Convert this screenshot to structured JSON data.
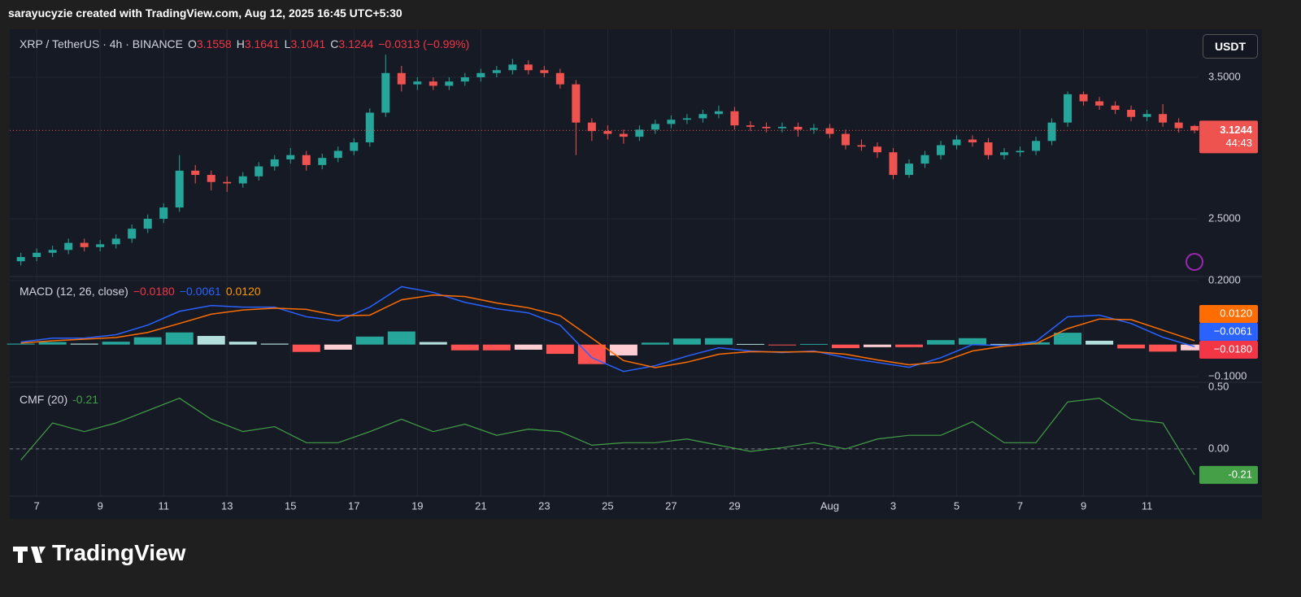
{
  "page": {
    "attribution": "sarayucyzie created with TradingView.com, Aug 12, 2025 16:45 UTC+5:30",
    "logo": "TradingView",
    "currency": "USDT"
  },
  "chart_data": [
    {
      "type": "candlestick",
      "symbol": "XRP / TetherUS · 4h · BINANCE",
      "ohlc_prefixes": [
        "O",
        "H",
        "L",
        "C"
      ],
      "change": "−0.0313 (−0.99%)",
      "countdown": "44:43",
      "up_color": "#26a69a",
      "down_color": "#ef5350",
      "grid": true,
      "ylim": [
        2.092,
        3.839
      ],
      "yticks": [
        {
          "value": 3.5,
          "label": "3.5000"
        },
        {
          "value": 2.5,
          "label": "2.5000"
        }
      ],
      "x": [
        6.5,
        7,
        7.5,
        8,
        8.5,
        9,
        9.5,
        10,
        10.5,
        11,
        11.5,
        12,
        12.5,
        13,
        13.5,
        14,
        14.5,
        15,
        15.5,
        16,
        16.5,
        17,
        17.5,
        18,
        18.5,
        19,
        19.5,
        20,
        20.5,
        21,
        21.5,
        22,
        22.5,
        23,
        23.5,
        24,
        24.5,
        25,
        25.5,
        26,
        26.5,
        27,
        27.5,
        28,
        28.5,
        29,
        29.5,
        30,
        30.5,
        31,
        31.5,
        32,
        32.5,
        33,
        33.5,
        34,
        34.5,
        35,
        35.5,
        36,
        36.5,
        37,
        37.5,
        38,
        38.5,
        39,
        39.5,
        40,
        40.5,
        41,
        41.5,
        42,
        42.5,
        43,
        43.5
      ],
      "open": [
        2.2,
        2.23,
        2.26,
        2.28,
        2.33,
        2.3,
        2.32,
        2.36,
        2.43,
        2.5,
        2.58,
        2.84,
        2.81,
        2.76,
        2.75,
        2.8,
        2.87,
        2.92,
        2.95,
        2.88,
        2.93,
        2.98,
        3.04,
        3.25,
        3.53,
        3.45,
        3.47,
        3.44,
        3.47,
        3.5,
        3.53,
        3.55,
        3.59,
        3.55,
        3.53,
        3.45,
        3.18,
        3.12,
        3.1,
        3.08,
        3.13,
        3.17,
        3.2,
        3.21,
        3.24,
        3.26,
        3.16,
        3.15,
        3.14,
        3.15,
        3.13,
        3.14,
        3.1,
        3.02,
        3.01,
        2.97,
        2.81,
        2.89,
        2.95,
        3.02,
        3.06,
        3.04,
        2.95,
        2.97,
        2.98,
        3.05,
        3.18,
        3.38,
        3.33,
        3.3,
        3.27,
        3.22,
        3.24,
        3.18,
        3.1558
      ],
      "high": [
        2.26,
        2.29,
        2.31,
        2.36,
        2.36,
        2.35,
        2.39,
        2.46,
        2.53,
        2.61,
        2.95,
        2.88,
        2.84,
        2.8,
        2.83,
        2.9,
        2.95,
        3.0,
        2.98,
        2.96,
        3.01,
        3.07,
        3.28,
        3.66,
        3.58,
        3.5,
        3.5,
        3.5,
        3.53,
        3.56,
        3.58,
        3.63,
        3.62,
        3.58,
        3.56,
        3.48,
        3.21,
        3.16,
        3.13,
        3.16,
        3.2,
        3.23,
        3.24,
        3.27,
        3.3,
        3.29,
        3.19,
        3.18,
        3.18,
        3.18,
        3.17,
        3.17,
        3.13,
        3.06,
        3.04,
        3.0,
        2.92,
        2.98,
        3.05,
        3.09,
        3.09,
        3.07,
        3.0,
        3.01,
        3.08,
        3.21,
        3.4,
        3.4,
        3.36,
        3.33,
        3.3,
        3.27,
        3.31,
        3.21,
        3.1641
      ],
      "low": [
        2.17,
        2.2,
        2.23,
        2.25,
        2.27,
        2.27,
        2.29,
        2.33,
        2.4,
        2.47,
        2.55,
        2.75,
        2.7,
        2.69,
        2.72,
        2.77,
        2.84,
        2.89,
        2.84,
        2.85,
        2.9,
        2.95,
        3.01,
        3.22,
        3.4,
        3.41,
        3.41,
        3.41,
        3.44,
        3.47,
        3.5,
        3.52,
        3.52,
        3.5,
        3.42,
        2.95,
        3.05,
        3.06,
        3.03,
        3.05,
        3.1,
        3.14,
        3.17,
        3.18,
        3.21,
        3.13,
        3.12,
        3.11,
        3.11,
        3.08,
        3.1,
        3.07,
        2.99,
        2.98,
        2.93,
        2.78,
        2.79,
        2.86,
        2.92,
        2.99,
        3.01,
        2.92,
        2.92,
        2.94,
        2.95,
        3.02,
        3.15,
        3.3,
        3.27,
        3.24,
        3.19,
        3.19,
        3.15,
        3.11,
        3.1041
      ],
      "close": [
        2.23,
        2.26,
        2.28,
        2.33,
        2.3,
        2.32,
        2.36,
        2.43,
        2.5,
        2.58,
        2.84,
        2.81,
        2.76,
        2.75,
        2.8,
        2.87,
        2.92,
        2.95,
        2.88,
        2.93,
        2.98,
        3.04,
        3.25,
        3.53,
        3.45,
        3.47,
        3.44,
        3.47,
        3.5,
        3.53,
        3.55,
        3.59,
        3.55,
        3.53,
        3.45,
        3.18,
        3.12,
        3.1,
        3.08,
        3.13,
        3.17,
        3.2,
        3.21,
        3.24,
        3.26,
        3.16,
        3.15,
        3.14,
        3.15,
        3.13,
        3.14,
        3.1,
        3.02,
        3.01,
        2.97,
        2.81,
        2.89,
        2.95,
        3.02,
        3.06,
        3.04,
        2.95,
        2.97,
        2.98,
        3.05,
        3.18,
        3.38,
        3.33,
        3.3,
        3.27,
        3.22,
        3.24,
        3.18,
        3.14,
        3.1244
      ]
    },
    {
      "type": "macd",
      "title": "MACD (12, 26, close)",
      "grid": true,
      "ylim": [
        -0.1178,
        0.2127
      ],
      "yticks": [
        {
          "value": 0.2,
          "label": "0.2000"
        },
        {
          "value": -0.1,
          "label": "−0.1000"
        }
      ],
      "histogram_colors": [
        "#26a69a",
        "#b2dfdb",
        "#ff5252",
        "#ffcdd2"
      ],
      "x": [
        6.5,
        7.5,
        8.5,
        9.5,
        10.5,
        11.5,
        12.5,
        13.5,
        14.5,
        15.5,
        16.5,
        17.5,
        18.5,
        19.5,
        20.5,
        21.5,
        22.5,
        23.5,
        24.5,
        25.5,
        26.5,
        27.5,
        28.5,
        29.5,
        30.5,
        31.5,
        32.5,
        33.5,
        34.5,
        35.5,
        36.5,
        37.5,
        38.5,
        39.5,
        40.5,
        41.5,
        42.5,
        43.5
      ],
      "series": [
        {
          "kind": "histogram",
          "color": "#f23645",
          "last_label": "−0.0180",
          "values": [
            0.003,
            0.008,
            0.003,
            0.009,
            0.023,
            0.038,
            0.027,
            0.009,
            0.003,
            -0.023,
            -0.016,
            0.025,
            0.041,
            0.008,
            -0.018,
            -0.018,
            -0.016,
            -0.029,
            -0.061,
            -0.034,
            0.006,
            0.019,
            0.02,
            0.002,
            -0.002,
            0.002,
            -0.011,
            -0.008,
            -0.008,
            0.014,
            0.02,
            0.002,
            0.007,
            0.037,
            0.012,
            -0.012,
            -0.022,
            -0.018
          ]
        },
        {
          "kind": "line",
          "color": "#2962ff",
          "last_label": "−0.0061",
          "values": [
            0.008,
            0.02,
            0.02,
            0.031,
            0.061,
            0.104,
            0.122,
            0.117,
            0.117,
            0.087,
            0.074,
            0.117,
            0.181,
            0.163,
            0.132,
            0.112,
            0.099,
            0.061,
            -0.041,
            -0.084,
            -0.066,
            -0.036,
            -0.01,
            -0.02,
            -0.025,
            -0.02,
            -0.041,
            -0.056,
            -0.071,
            -0.041,
            0.0,
            -0.003,
            0.01,
            0.087,
            0.092,
            0.066,
            0.023,
            -0.0061
          ]
        },
        {
          "kind": "line",
          "color": "#ff6d00",
          "last_label": "0.0120",
          "values": [
            0.005,
            0.012,
            0.017,
            0.022,
            0.038,
            0.066,
            0.095,
            0.108,
            0.114,
            0.11,
            0.09,
            0.092,
            0.14,
            0.155,
            0.15,
            0.13,
            0.115,
            0.09,
            0.02,
            -0.05,
            -0.072,
            -0.055,
            -0.03,
            -0.022,
            -0.023,
            -0.022,
            -0.03,
            -0.048,
            -0.063,
            -0.055,
            -0.02,
            -0.005,
            0.003,
            0.05,
            0.08,
            0.078,
            0.045,
            0.012
          ]
        }
      ]
    },
    {
      "type": "line",
      "title": "CMF (20)",
      "grid": true,
      "zero_line": true,
      "ylim": [
        -0.382,
        0.539
      ],
      "yticks": [
        {
          "value": 0.5,
          "label": "0.50"
        },
        {
          "value": 0,
          "label": "0.00"
        }
      ],
      "xlim": [
        6.15,
        43.6
      ],
      "xticks": [
        7,
        9,
        11,
        13,
        15,
        17,
        19,
        21,
        23,
        25,
        27,
        29,
        {
          "value": 32,
          "label": "Aug"
        },
        {
          "value": 34,
          "label": "3"
        },
        {
          "value": 36,
          "label": "5"
        },
        {
          "value": 38,
          "label": "7"
        },
        {
          "value": 40,
          "label": "9"
        },
        {
          "value": 42,
          "label": "11"
        }
      ],
      "x": [
        6.5,
        7.5,
        8.5,
        9.5,
        10.5,
        11.5,
        12.5,
        13.5,
        14.5,
        15.5,
        16.5,
        17.5,
        18.5,
        19.5,
        20.5,
        21.5,
        22.5,
        23.5,
        24.5,
        25.5,
        26.5,
        27.5,
        28.5,
        29.5,
        30.5,
        31.5,
        32.5,
        33.5,
        34.5,
        35.5,
        36.5,
        37.5,
        38.5,
        39.5,
        40.5,
        41.5,
        42.5,
        43.5
      ],
      "series": [
        {
          "color": "#43a047",
          "values": [
            -0.09,
            0.21,
            0.14,
            0.21,
            0.31,
            0.41,
            0.24,
            0.14,
            0.18,
            0.05,
            0.05,
            0.14,
            0.24,
            0.14,
            0.2,
            0.11,
            0.16,
            0.14,
            0.03,
            0.05,
            0.05,
            0.08,
            0.03,
            -0.02,
            0.01,
            0.05,
            0.0,
            0.08,
            0.11,
            0.11,
            0.22,
            0.05,
            0.05,
            0.38,
            0.41,
            0.24,
            0.21,
            -0.21
          ]
        }
      ]
    }
  ]
}
